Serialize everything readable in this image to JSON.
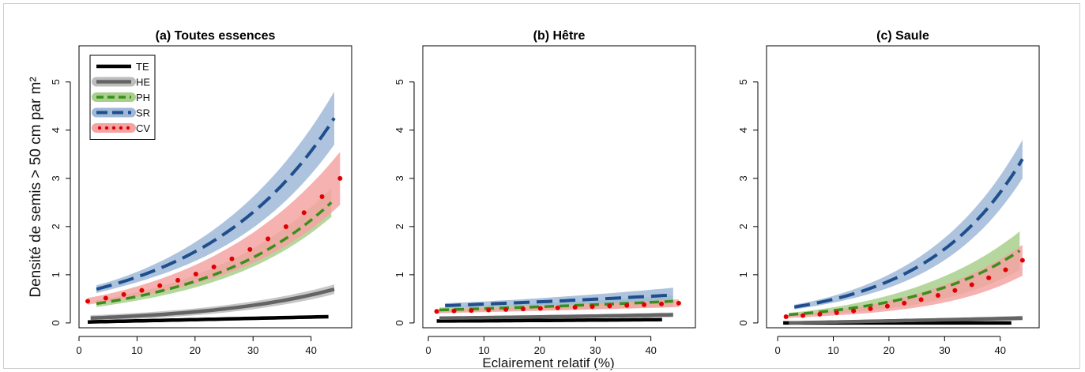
{
  "figure": {
    "ylabel": "Densité de semis > 50 cm par m²",
    "xlabel": "Eclairement relatif (%)"
  },
  "colors": {
    "TE": "#000000",
    "HE": "#646464",
    "PH": "#3a8f1c",
    "SR": "#1f4e8c",
    "CV": "#e00000",
    "band_HE": "#bdbdbd",
    "band_PH": "#a8d08d",
    "band_SR": "#9fb8d8",
    "band_CV": "#f4a3a3"
  },
  "chart_data": [
    {
      "type": "line",
      "title": "(a) Toutes essences",
      "xlim": [
        0,
        47
      ],
      "ylim": [
        -0.1,
        5.75
      ],
      "xticks": [
        0,
        10,
        20,
        30,
        40
      ],
      "yticks": [
        0,
        1,
        2,
        3,
        4,
        5
      ],
      "legend": {
        "placement": "top-left",
        "entries": [
          "TE",
          "HE",
          "PH",
          "SR",
          "CV"
        ]
      },
      "series": [
        {
          "name": "TE",
          "x": [
            1.5,
            43
          ],
          "y": [
            0.02,
            0.13
          ],
          "band": null
        },
        {
          "name": "HE",
          "x": [
            2,
            44
          ],
          "y": [
            0.1,
            0.7
          ],
          "band": [
            0.06,
            0.1
          ]
        },
        {
          "name": "PH",
          "x": [
            3,
            43.5
          ],
          "y": [
            0.4,
            2.5
          ],
          "band": [
            0.07,
            0.3
          ]
        },
        {
          "name": "SR",
          "x": [
            3,
            44
          ],
          "y": [
            0.7,
            4.25
          ],
          "band": [
            0.08,
            0.55
          ]
        },
        {
          "name": "CV",
          "x": [
            1.5,
            45
          ],
          "y": [
            0.45,
            3.0
          ],
          "band": [
            0.07,
            0.55
          ]
        }
      ]
    },
    {
      "type": "line",
      "title": "(b) Hêtre",
      "xlim": [
        -1,
        48
      ],
      "ylim": [
        -0.1,
        5.75
      ],
      "xticks": [
        0,
        10,
        20,
        30,
        40
      ],
      "yticks": [
        0,
        1,
        2,
        3,
        4,
        5
      ],
      "legend": null,
      "series": [
        {
          "name": "TE",
          "x": [
            1.5,
            42
          ],
          "y": [
            0.04,
            0.07
          ],
          "band": null
        },
        {
          "name": "HE",
          "x": [
            2,
            44
          ],
          "y": [
            0.1,
            0.17
          ],
          "band": [
            0.03,
            0.05
          ]
        },
        {
          "name": "PH",
          "x": [
            2,
            44
          ],
          "y": [
            0.27,
            0.45
          ],
          "band": [
            0.05,
            0.12
          ]
        },
        {
          "name": "SR",
          "x": [
            3,
            44
          ],
          "y": [
            0.36,
            0.58
          ],
          "band": [
            0.05,
            0.15
          ]
        },
        {
          "name": "CV",
          "x": [
            1.5,
            45
          ],
          "y": [
            0.24,
            0.41
          ],
          "band": [
            0.04,
            0.08
          ]
        }
      ]
    },
    {
      "type": "line",
      "title": "(c) Saule",
      "xlim": [
        -2,
        47
      ],
      "ylim": [
        -0.1,
        5.75
      ],
      "xticks": [
        0,
        10,
        20,
        30,
        40
      ],
      "yticks": [
        0,
        1,
        2,
        3,
        4,
        5
      ],
      "legend": null,
      "series": [
        {
          "name": "TE",
          "x": [
            1,
            42
          ],
          "y": [
            0.0,
            0.0
          ],
          "band": null
        },
        {
          "name": "HE",
          "x": [
            2,
            44
          ],
          "y": [
            0.0,
            0.1
          ],
          "band": [
            0.02,
            0.05
          ]
        },
        {
          "name": "PH",
          "x": [
            2,
            43.5
          ],
          "y": [
            0.17,
            1.5
          ],
          "band": [
            0.04,
            0.4
          ]
        },
        {
          "name": "SR",
          "x": [
            3,
            44
          ],
          "y": [
            0.33,
            3.4
          ],
          "band": [
            0.05,
            0.4
          ]
        },
        {
          "name": "CV",
          "x": [
            1.5,
            44
          ],
          "y": [
            0.13,
            1.3
          ],
          "band": [
            0.03,
            0.32
          ]
        }
      ]
    }
  ]
}
